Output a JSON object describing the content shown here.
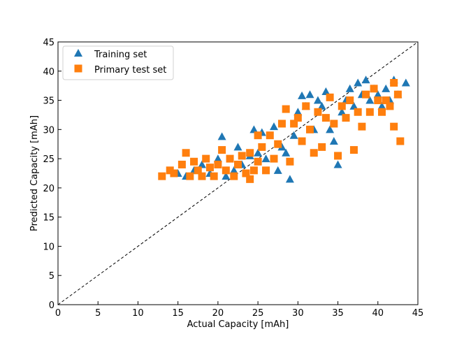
{
  "chart_data": {
    "type": "scatter",
    "title": "",
    "xlabel": "Actual Capacity [mAh]",
    "ylabel": "Predicted Capacity [mAh]",
    "xlim": [
      0,
      45
    ],
    "ylim": [
      0,
      45
    ],
    "xticks": [
      0,
      5,
      10,
      15,
      20,
      25,
      30,
      35,
      40,
      45
    ],
    "yticks": [
      0,
      5,
      10,
      15,
      20,
      25,
      30,
      35,
      40,
      45
    ],
    "grid": false,
    "legend_position": "top-left",
    "reference_line": {
      "style": "dashed",
      "color": "#000000",
      "from": [
        0,
        0
      ],
      "to": [
        45,
        45
      ]
    },
    "series": [
      {
        "name": "Training set",
        "marker": "triangle",
        "color": "#1f77b4",
        "points": [
          [
            15,
            22.5
          ],
          [
            16,
            22
          ],
          [
            17,
            23
          ],
          [
            18,
            24
          ],
          [
            19,
            22.5
          ],
          [
            20,
            25
          ],
          [
            20.5,
            28.8
          ],
          [
            21,
            22
          ],
          [
            22,
            23
          ],
          [
            22.5,
            27
          ],
          [
            23,
            24
          ],
          [
            24,
            25.5
          ],
          [
            24.5,
            30
          ],
          [
            25,
            26
          ],
          [
            25.5,
            29.5
          ],
          [
            26,
            25
          ],
          [
            27,
            30.5
          ],
          [
            27.5,
            23
          ],
          [
            28,
            27
          ],
          [
            28.5,
            26
          ],
          [
            29,
            21.5
          ],
          [
            29.5,
            29
          ],
          [
            30,
            33
          ],
          [
            30.5,
            35.8
          ],
          [
            31,
            34
          ],
          [
            31.5,
            36
          ],
          [
            32,
            30
          ],
          [
            32.5,
            35
          ],
          [
            33,
            34
          ],
          [
            33.5,
            36.5
          ],
          [
            34,
            30
          ],
          [
            34.5,
            28
          ],
          [
            35,
            24
          ],
          [
            35.5,
            33
          ],
          [
            36,
            35
          ],
          [
            36.5,
            37
          ],
          [
            37,
            34
          ],
          [
            37.5,
            38
          ],
          [
            38,
            36
          ],
          [
            38.5,
            38.5
          ],
          [
            39,
            35
          ],
          [
            39.5,
            37
          ],
          [
            40,
            36
          ],
          [
            40.5,
            34
          ],
          [
            41,
            37
          ],
          [
            41.5,
            35
          ],
          [
            42,
            38.5
          ],
          [
            42.5,
            36
          ],
          [
            43.5,
            38
          ]
        ]
      },
      {
        "name": "Primary test set",
        "marker": "square",
        "color": "#ff7f0e",
        "points": [
          [
            13,
            22
          ],
          [
            14,
            23
          ],
          [
            14.5,
            22.5
          ],
          [
            15.5,
            24
          ],
          [
            16,
            26
          ],
          [
            16.5,
            22
          ],
          [
            17,
            24.5
          ],
          [
            17.5,
            23
          ],
          [
            18,
            22
          ],
          [
            18.5,
            25
          ],
          [
            19,
            23.5
          ],
          [
            19.5,
            22
          ],
          [
            20,
            24
          ],
          [
            20.5,
            26.5
          ],
          [
            21,
            23
          ],
          [
            21.5,
            25
          ],
          [
            22,
            22
          ],
          [
            22.5,
            24
          ],
          [
            23,
            25.5
          ],
          [
            23.5,
            22.5
          ],
          [
            24,
            26
          ],
          [
            24.5,
            23
          ],
          [
            25,
            24.5
          ],
          [
            25.5,
            27
          ],
          [
            26,
            23
          ],
          [
            26.5,
            29
          ],
          [
            27,
            25
          ],
          [
            27.5,
            27.5
          ],
          [
            28,
            31
          ],
          [
            28.5,
            33.5
          ],
          [
            29,
            24.5
          ],
          [
            29.5,
            31
          ],
          [
            30,
            32
          ],
          [
            30.5,
            28
          ],
          [
            31,
            34
          ],
          [
            31.5,
            30
          ],
          [
            32,
            26
          ],
          [
            32.5,
            33
          ],
          [
            33,
            27
          ],
          [
            33.5,
            32
          ],
          [
            34,
            35.5
          ],
          [
            34.5,
            31
          ],
          [
            35,
            25.5
          ],
          [
            35.5,
            34
          ],
          [
            36,
            32
          ],
          [
            36.5,
            35
          ],
          [
            37,
            26.5
          ],
          [
            37.5,
            33
          ],
          [
            38,
            30.5
          ],
          [
            38.5,
            36
          ],
          [
            39,
            33
          ],
          [
            39.5,
            37
          ],
          [
            40,
            35
          ],
          [
            40.5,
            33
          ],
          [
            41,
            35
          ],
          [
            41.5,
            34
          ],
          [
            42,
            30.5
          ],
          [
            42,
            38
          ],
          [
            42.5,
            36
          ],
          [
            42.8,
            28
          ],
          [
            25,
            29
          ],
          [
            24,
            21.5
          ]
        ]
      }
    ]
  }
}
